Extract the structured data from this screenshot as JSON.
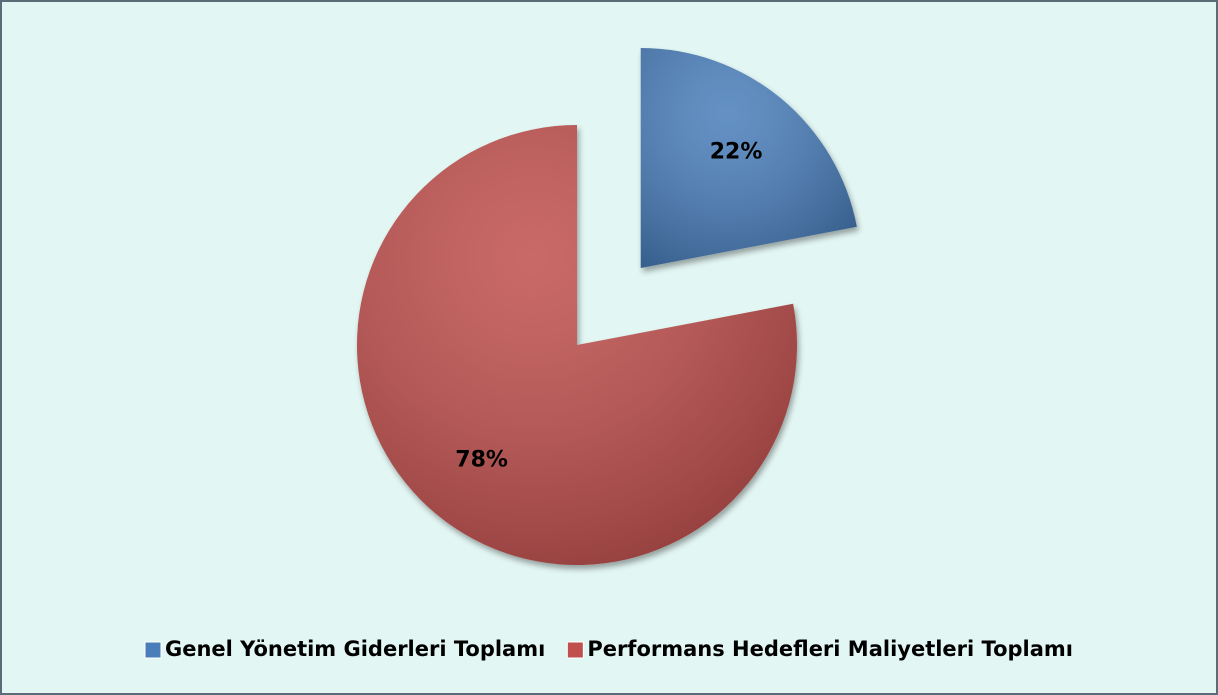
{
  "chart_data": {
    "type": "pie",
    "categories": [
      "Genel Yönetim Giderleri Toplamı",
      "Performans Hedefleri Maliyetleri Toplamı"
    ],
    "values": [
      22,
      78
    ],
    "value_labels": [
      "22%",
      "78%"
    ],
    "colors": [
      "#4a7ebb",
      "#c0504d"
    ],
    "legend": "bottom"
  }
}
